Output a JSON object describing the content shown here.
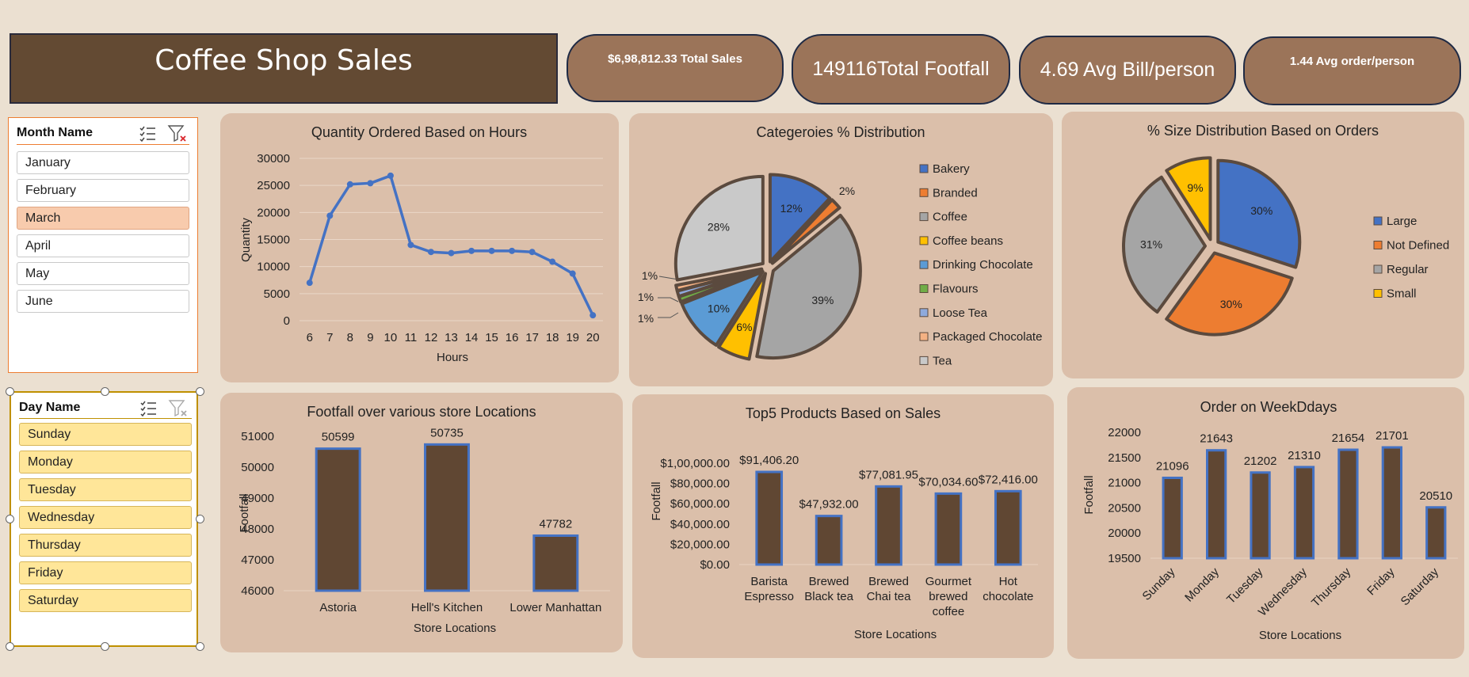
{
  "title": "Coffee Shop Sales",
  "kpis": [
    {
      "text": "$6,98,812.33 Total Sales"
    },
    {
      "text": "149116Total Footfall"
    },
    {
      "text": "4.69 Avg Bill/person"
    },
    {
      "text": "1.44 Avg order/person"
    }
  ],
  "month_slicer": {
    "title": "Month Name",
    "items": [
      "January",
      "February",
      "March",
      "April",
      "May",
      "June"
    ],
    "selected": "March"
  },
  "day_slicer": {
    "title": "Day Name",
    "items": [
      "Sunday",
      "Monday",
      "Tuesday",
      "Wednesday",
      "Thursday",
      "Friday",
      "Saturday"
    ]
  },
  "colors": {
    "bar_fill": "#604733",
    "bar_edge": "#4472c4",
    "line": "#4472c4",
    "card": "#dbbfaa",
    "kpi": "#9b7459",
    "slicer_selected": "#f8cbad",
    "day_item": "#ffe699"
  },
  "chart_data": [
    {
      "id": "hours",
      "type": "line",
      "title": "Quantity Ordered Based on Hours",
      "xlabel": "Hours",
      "ylabel": "Quantity",
      "x": [
        6,
        7,
        8,
        9,
        10,
        11,
        12,
        13,
        14,
        15,
        16,
        17,
        18,
        19,
        20
      ],
      "values": [
        7000,
        19400,
        25200,
        25400,
        26800,
        14000,
        12700,
        12500,
        12900,
        12900,
        12900,
        12700,
        10900,
        8700,
        1000
      ],
      "yticks": [
        0,
        5000,
        10000,
        15000,
        20000,
        25000,
        30000
      ],
      "ylim": [
        0,
        30000
      ],
      "grid": true
    },
    {
      "id": "categories",
      "type": "pie",
      "title": "Categeroies % Distribution",
      "slices": [
        {
          "name": "Bakery",
          "value": 12,
          "label": "12%",
          "color": "#4472c4"
        },
        {
          "name": "Branded",
          "value": 2,
          "label": "2%",
          "color": "#ed7d31"
        },
        {
          "name": "Coffee",
          "value": 39,
          "label": "39%",
          "color": "#a5a5a5"
        },
        {
          "name": "Coffee beans",
          "value": 6,
          "label": "6%",
          "color": "#ffc000"
        },
        {
          "name": "Drinking Chocolate",
          "value": 10,
          "label": "10%",
          "color": "#5b9bd5"
        },
        {
          "name": "Flavours",
          "value": 1,
          "label": "1%",
          "color": "#70ad47"
        },
        {
          "name": "Loose Tea",
          "value": 1,
          "label": "1%",
          "color": "#8faadc"
        },
        {
          "name": "Packaged Chocolate",
          "value": 1,
          "label": "1%",
          "color": "#f4b183"
        },
        {
          "name": "Tea",
          "value": 28,
          "label": "28%",
          "color": "#c9c9c9"
        }
      ]
    },
    {
      "id": "sizes",
      "type": "pie",
      "title": "% Size Distribution Based on Orders",
      "slices": [
        {
          "name": "Large",
          "value": 30,
          "label": "30%",
          "color": "#4472c4"
        },
        {
          "name": "Not Defined",
          "value": 30,
          "label": "30%",
          "color": "#ed7d31"
        },
        {
          "name": "Regular",
          "value": 31,
          "label": "31%",
          "color": "#a5a5a5"
        },
        {
          "name": "Small",
          "value": 9,
          "label": "9%",
          "color": "#ffc000"
        }
      ]
    },
    {
      "id": "footfall",
      "type": "bar",
      "title": "Footfall over various store Locations",
      "xlabel": "Store Locations",
      "ylabel": "Footfall",
      "categories": [
        "Astoria",
        "Hell's Kitchen",
        "Lower Manhattan"
      ],
      "values": [
        50599,
        50735,
        47782
      ],
      "value_labels": [
        "50599",
        "50735",
        "47782"
      ],
      "yticks": [
        46000,
        47000,
        48000,
        49000,
        50000,
        51000
      ],
      "ylim": [
        46000,
        51000
      ]
    },
    {
      "id": "top5",
      "type": "bar",
      "title": "Top5 Products Based on Sales",
      "xlabel": "Store Locations",
      "ylabel": "Footfall",
      "categories": [
        [
          "Barista",
          "Espresso"
        ],
        [
          "Brewed",
          "Black tea"
        ],
        [
          "Brewed",
          "Chai tea"
        ],
        [
          "Gourmet",
          "brewed",
          "coffee"
        ],
        [
          "Hot",
          "chocolate"
        ]
      ],
      "values": [
        91406.2,
        47932.0,
        77081.95,
        70034.6,
        72416.0
      ],
      "value_labels": [
        "$91,406.20",
        "$47,932.00",
        "$77,081.95",
        "$70,034.60",
        "$72,416.00"
      ],
      "yticks": [
        0,
        20000,
        40000,
        60000,
        80000,
        100000
      ],
      "ytick_labels": [
        "$0.00",
        "$20,000.00",
        "$40,000.00",
        "$60,000.00",
        "$80,000.00",
        "$1,00,000.00"
      ],
      "ylim": [
        0,
        100000
      ]
    },
    {
      "id": "weekdays",
      "type": "bar",
      "title": "Order on WeekDdays",
      "xlabel": "Store Locations",
      "ylabel": "Footfall",
      "categories": [
        "Sunday",
        "Monday",
        "Tuesday",
        "Wednesday",
        "Thursday",
        "Friday",
        "Saturday"
      ],
      "values": [
        21096,
        21643,
        21202,
        21310,
        21654,
        21701,
        20510
      ],
      "value_labels": [
        "21096",
        "21643",
        "21202",
        "21310",
        "21654",
        "21701",
        "20510"
      ],
      "yticks": [
        19500,
        20000,
        20500,
        21000,
        21500,
        22000
      ],
      "ylim": [
        19500,
        22000
      ]
    }
  ]
}
